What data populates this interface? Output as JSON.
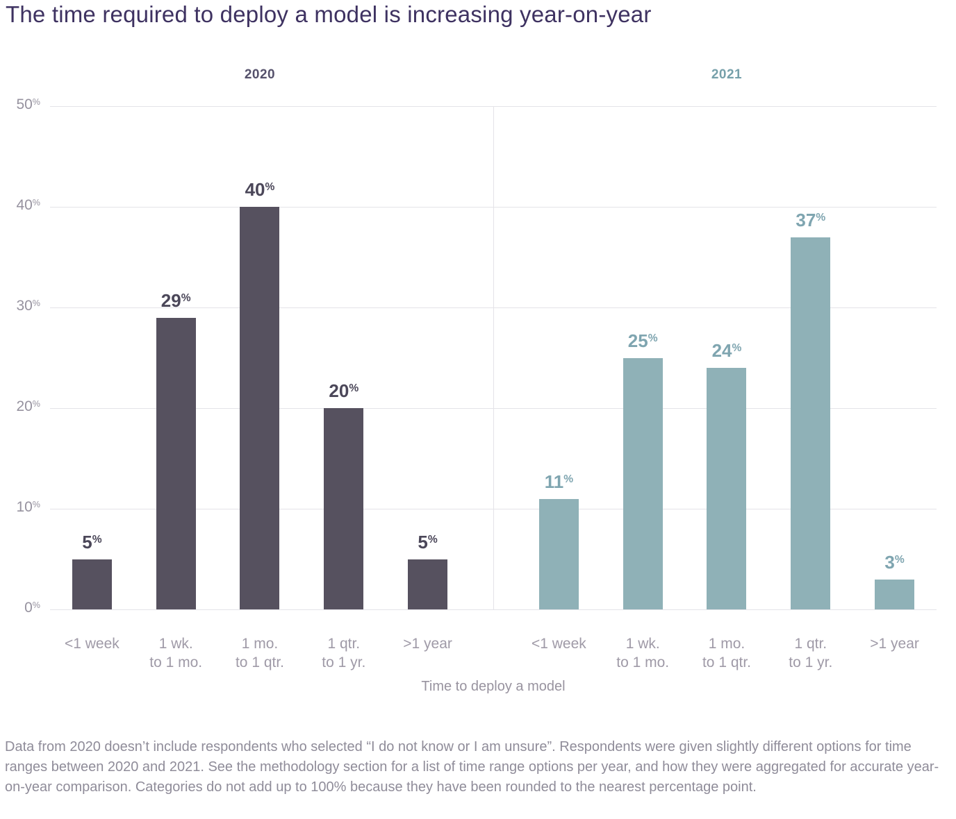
{
  "title": "The time required to deploy a model is increasing year-on-year",
  "chart_data": {
    "type": "bar",
    "categories": [
      "<1 week",
      "1 wk.\nto 1 mo.",
      "1 mo.\nto 1 qtr.",
      "1 qtr.\nto 1 yr.",
      ">1 year"
    ],
    "series": [
      {
        "name": "2020",
        "values": [
          5,
          29,
          40,
          20,
          5
        ],
        "bar_color": "#56515f",
        "value_label_color": "#4b4759",
        "header_color": "#55516b"
      },
      {
        "name": "2021",
        "values": [
          11,
          25,
          24,
          37,
          3
        ],
        "bar_color": "#8fb1b7",
        "value_label_color": "#7fa5b0",
        "header_color": "#76a0aa"
      }
    ],
    "xlabel": "Time to deploy a model",
    "ylim": [
      0,
      50
    ],
    "yticks": [
      0,
      10,
      20,
      30,
      40,
      50
    ],
    "ytick_suffix": "%",
    "value_suffix": "%",
    "grid": true,
    "legend_position": "panel-headers",
    "gridline_color": "#e4e3e8"
  },
  "footnote": "Data from 2020 doesn’t include respondents who selected “I do not know or I am unsure”. Respondents were given slightly different options for time ranges between 2020 and 2021. See the methodology section for a list of time range options per year, and how they were aggregated for accurate year-on-year comparison. Categories do not add up to 100% because they have been rounded to the nearest percentage point."
}
